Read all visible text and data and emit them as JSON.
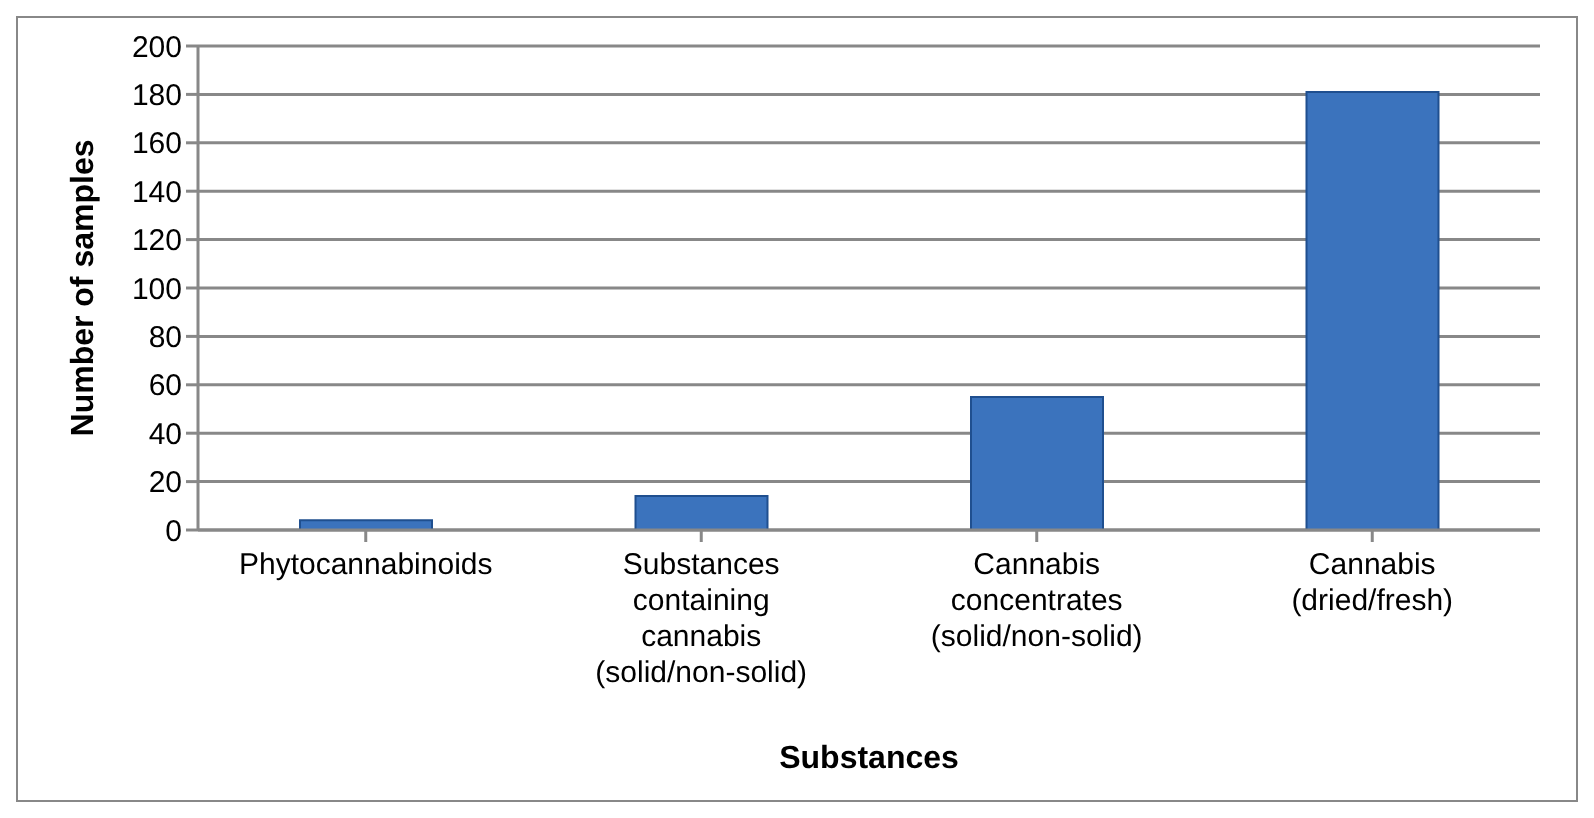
{
  "chart_data": {
    "type": "bar",
    "xlabel": "Substances",
    "ylabel": "Number of samples",
    "categories": [
      "Phytocannabinoids",
      "Substances containing cannabis (solid/non-solid)",
      "Cannabis concentrates (solid/non-solid)",
      "Cannabis (dried/fresh)"
    ],
    "values": [
      4,
      14,
      55,
      181
    ],
    "color": "#3b73bd",
    "ylim": [
      0,
      200
    ],
    "yticks": [
      0,
      20,
      40,
      60,
      80,
      100,
      120,
      140,
      160,
      180,
      200
    ],
    "grid": "y"
  }
}
